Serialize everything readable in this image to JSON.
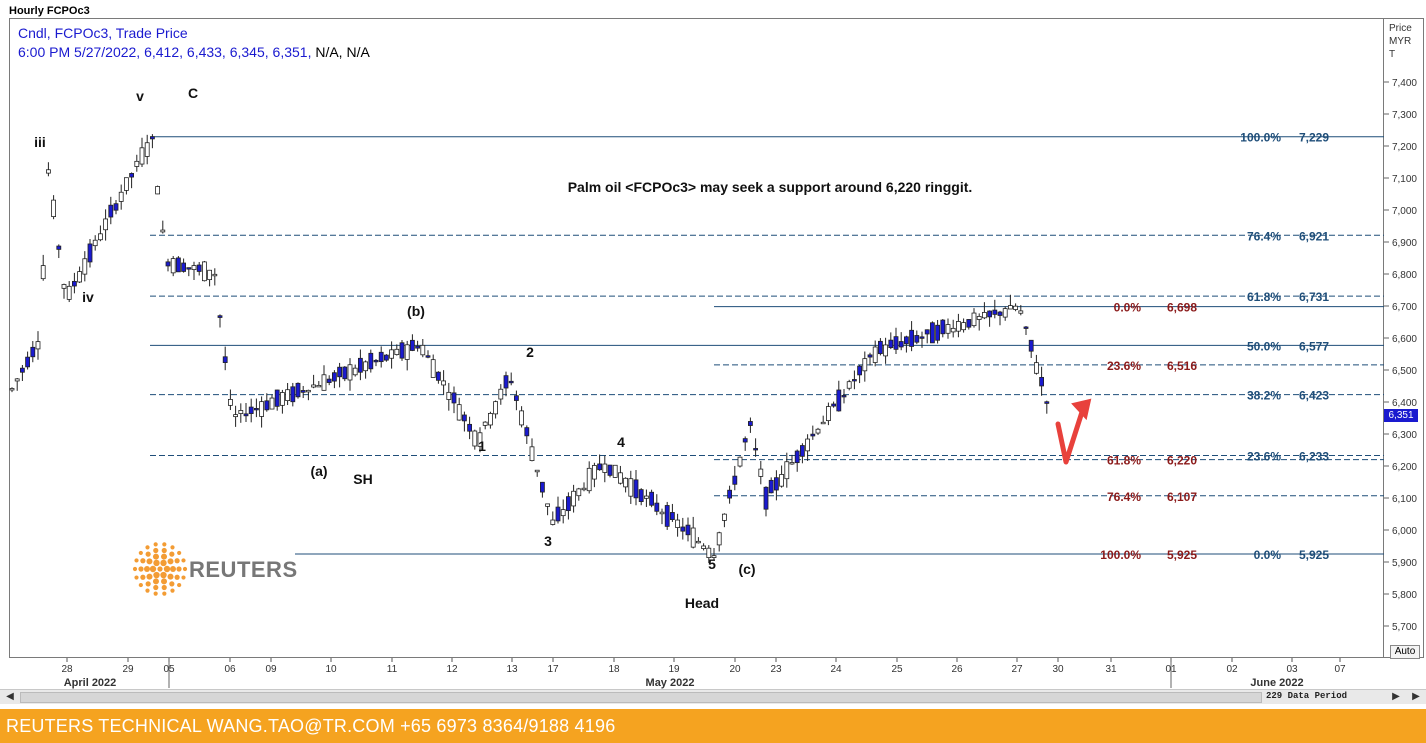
{
  "window": {
    "title": "Hourly FCPOc3"
  },
  "header": {
    "line1": "Cndl, FCPOc3, Trade Price",
    "line2_prefix": "6:00 PM 5/27/2022, 6,412, 6,433, 6,345, 6,351,",
    "line2_suffix": "N/A, N/A"
  },
  "axis_title": [
    "Price",
    "MYR",
    "T"
  ],
  "last_price_tag": "6,351",
  "auto_button": "Auto",
  "data_period_label": "229 Data Period",
  "footer": {
    "text": "REUTERS TECHNICAL  WANG.TAO@TR.COM  +65 6973 8364/9188 4196"
  },
  "logo": {
    "text": "REUTERS"
  },
  "colors": {
    "up": "#ffffff",
    "down": "#1a1acf",
    "fib_blue": "#1f4e79",
    "fib_red": "#8b1a1a",
    "arrow": "#e8413c",
    "footer": "#f5a320",
    "header_text": "#1a1acf"
  },
  "chart_data": {
    "type": "candlestick",
    "title": "Palm oil <FCPOc3> may seek a support around 6,220 ringgit.",
    "ylabel": "Price MYR T",
    "ylim": [
      5630,
      7580
    ],
    "y_ticks": [
      "7,400",
      "7,300",
      "7,200",
      "7,100",
      "7,000",
      "6,900",
      "6,800",
      "6,700",
      "6,600",
      "6,500",
      "6,400",
      "6,300",
      "6,200",
      "6,100",
      "6,000",
      "5,900",
      "5,800",
      "5,700"
    ],
    "y_tick_values": [
      7400,
      7300,
      7200,
      7100,
      7000,
      6900,
      6800,
      6700,
      6600,
      6500,
      6400,
      6300,
      6200,
      6100,
      6000,
      5900,
      5800,
      5700
    ],
    "x_ticks": [
      "28",
      "29",
      "05",
      "06",
      "09",
      "10",
      "11",
      "12",
      "13",
      "17",
      "18",
      "19",
      "20",
      "23",
      "24",
      "25",
      "26",
      "27",
      "30",
      "31",
      "01",
      "02",
      "03",
      "07"
    ],
    "x_month_labels": [
      "April 2022",
      "May 2022",
      "June 2022"
    ],
    "wave_labels": [
      "iii",
      "v",
      "C",
      "iv",
      "(b)",
      "2",
      "1",
      "(a)",
      "SH",
      "4",
      "3",
      "5",
      "(c)",
      "Head"
    ],
    "fib_right": [
      {
        "pct": "100.0%",
        "value": "7,229",
        "price": 7229
      },
      {
        "pct": "76.4%",
        "value": "6,921",
        "price": 6921
      },
      {
        "pct": "61.8%",
        "value": "6,731",
        "price": 6731
      },
      {
        "pct": "50.0%",
        "value": "6,577",
        "price": 6577
      },
      {
        "pct": "38.2%",
        "value": "6,423",
        "price": 6423
      },
      {
        "pct": "23.6%",
        "value": "6,233",
        "price": 6233
      },
      {
        "pct": "0.0%",
        "value": "5,925",
        "price": 5925
      }
    ],
    "fib_mid": [
      {
        "pct": "0.0%",
        "value": "6,698",
        "price": 6698
      },
      {
        "pct": "23.6%",
        "value": "6,516",
        "price": 6516
      },
      {
        "pct": "61.8%",
        "value": "6,220",
        "price": 6220
      },
      {
        "pct": "76.4%",
        "value": "6,107",
        "price": 6107
      },
      {
        "pct": "100.0%",
        "value": "5,925",
        "price": 5925
      }
    ],
    "candles_anchor_prices": [
      6440,
      6600,
      7130,
      6720,
      7229,
      6840,
      6800,
      6350,
      6580,
      6280,
      6480,
      6020,
      6210,
      5925,
      6330,
      6100,
      6560,
      6698,
      6351
    ]
  }
}
